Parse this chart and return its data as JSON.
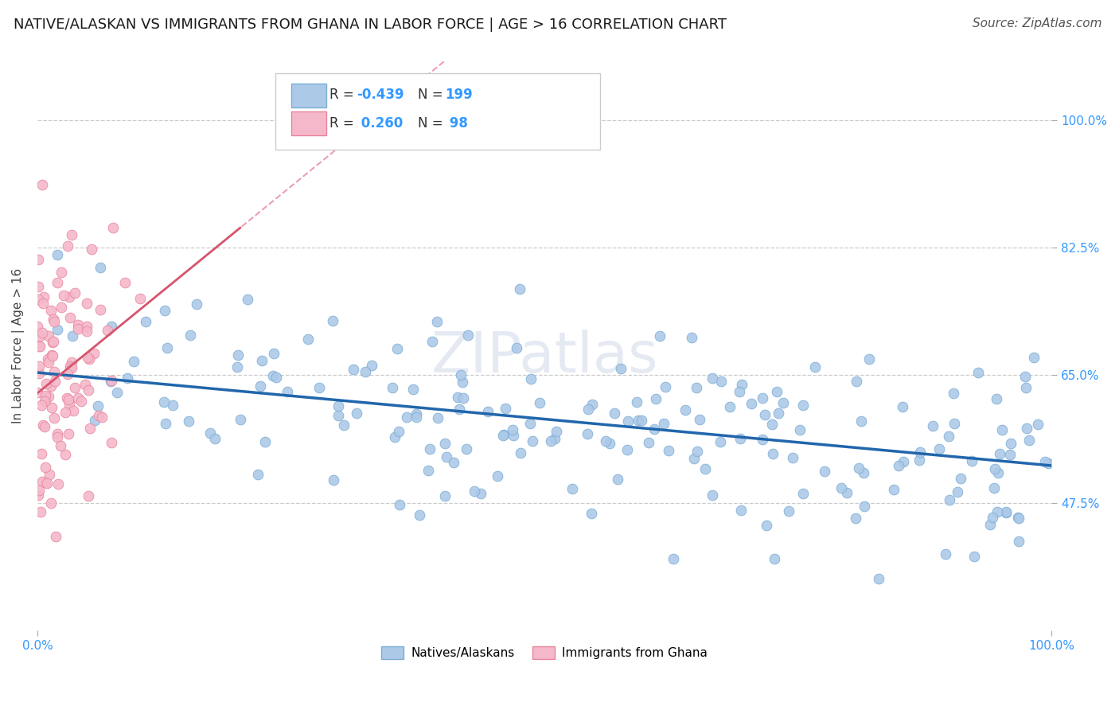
{
  "title": "NATIVE/ALASKAN VS IMMIGRANTS FROM GHANA IN LABOR FORCE | AGE > 16 CORRELATION CHART",
  "source": "Source: ZipAtlas.com",
  "ylabel": "In Labor Force | Age > 16",
  "xlim": [
    0.0,
    1.0
  ],
  "ylim": [
    0.3,
    1.08
  ],
  "xtick_labels": [
    "0.0%",
    "100.0%"
  ],
  "ytick_labels": [
    "47.5%",
    "65.0%",
    "82.5%",
    "100.0%"
  ],
  "ytick_values": [
    0.475,
    0.65,
    0.825,
    1.0
  ],
  "watermark": "ZIPatlas",
  "blue_R": -0.439,
  "blue_N": 199,
  "pink_R": 0.26,
  "pink_N": 98,
  "blue_scatter_color": "#adc9e8",
  "pink_scatter_color": "#f5b8cb",
  "blue_edge_color": "#7aadd4",
  "pink_edge_color": "#e8849a",
  "blue_line_color": "#2166ac",
  "pink_line_color": "#d6566e",
  "pink_dash_color": "#e8a0b0",
  "grid_color": "#cccccc",
  "background_color": "#ffffff",
  "title_fontsize": 13,
  "axis_label_fontsize": 11,
  "tick_label_fontsize": 11,
  "source_fontsize": 11
}
